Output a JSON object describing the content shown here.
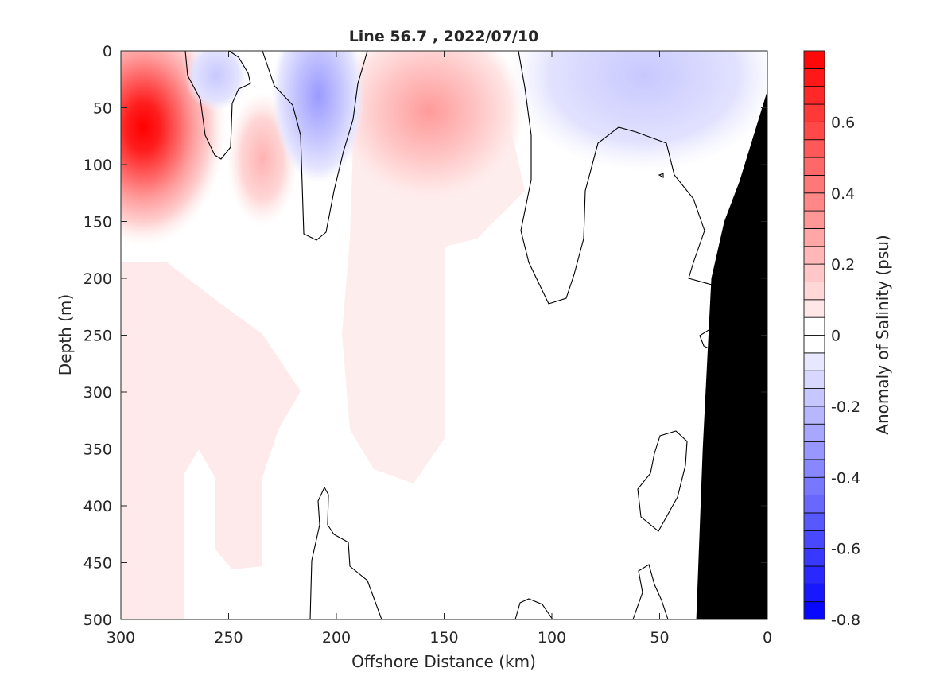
{
  "chart_data": {
    "type": "heatmap",
    "title": "Line 56.7 , 2022/07/10",
    "xlabel": "Offshore Distance (km)",
    "ylabel": "Depth (m)",
    "xlim": [
      300,
      0
    ],
    "ylim": [
      0,
      500
    ],
    "x_reversed": true,
    "y_reversed": true,
    "xticks": [
      300,
      250,
      200,
      150,
      100,
      50,
      0
    ],
    "yticks": [
      0,
      50,
      100,
      150,
      200,
      250,
      300,
      350,
      400,
      450,
      500
    ],
    "colorbar": {
      "label": "Anomaly of Salinity (psu)",
      "range": [
        -0.8,
        0.8
      ],
      "levels_step": 0.05,
      "ticks": [
        0.6,
        0.4,
        0.2,
        0,
        -0.2,
        -0.4,
        -0.6,
        -0.8
      ],
      "colormap": "blue-white-red",
      "low_color": "#0000ff",
      "high_color": "#ff0000",
      "mid_color": "#ffffff"
    },
    "features": [
      {
        "sign": "positive",
        "x": [
          300,
          255
        ],
        "depth": [
          0,
          250
        ],
        "peak_x": 288,
        "peak_depth": 70,
        "max_anomaly": 0.75
      },
      {
        "sign": "negative",
        "x": [
          268,
          240
        ],
        "depth": [
          0,
          90
        ],
        "peak_x": 256,
        "peak_depth": 18,
        "max_anomaly": -0.15
      },
      {
        "sign": "positive",
        "x": [
          250,
          220
        ],
        "depth": [
          40,
          150
        ],
        "peak_x": 235,
        "peak_depth": 95,
        "max_anomaly": 0.2
      },
      {
        "sign": "negative",
        "x": [
          230,
          190
        ],
        "depth": [
          0,
          165
        ],
        "peak_x": 207,
        "peak_depth": 45,
        "max_anomaly": -0.25
      },
      {
        "sign": "positive",
        "x": [
          190,
          112
        ],
        "depth": [
          0,
          380
        ],
        "peak_x": 160,
        "peak_depth": 40,
        "max_anomaly": 0.3
      },
      {
        "sign": "negative",
        "x": [
          112,
          0
        ],
        "depth": [
          0,
          110
        ],
        "peak_x": 80,
        "peak_depth": 25,
        "max_anomaly": -0.15
      },
      {
        "sign": "positive",
        "x": [
          300,
          215
        ],
        "depth": [
          150,
          500
        ],
        "max_anomaly": 0.05
      }
    ],
    "bathymetry": {
      "color": "#000000",
      "points": [
        [
          33,
          500
        ],
        [
          30,
          350
        ],
        [
          26,
          200
        ],
        [
          20,
          150
        ],
        [
          13,
          115
        ],
        [
          0,
          35
        ],
        [
          0,
          500
        ]
      ]
    }
  }
}
